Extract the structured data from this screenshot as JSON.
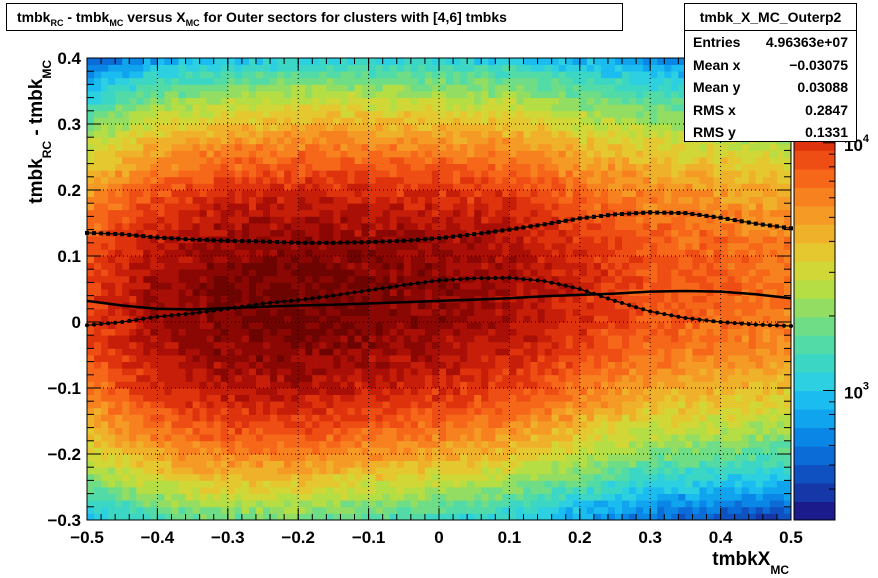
{
  "title": {
    "parts": [
      {
        "t": "tmbk"
      },
      {
        "s": "RC"
      },
      {
        "t": " - tmbk"
      },
      {
        "s": "MC"
      },
      {
        "t": " versus X"
      },
      {
        "s": "MC"
      },
      {
        "t": " for Outer sectors for clusters with [4,6] tmbks"
      }
    ]
  },
  "stats": {
    "name": "tmbk_X_MC_Outerp2",
    "rows": [
      {
        "label": "Entries",
        "value": "4.96363e+07"
      },
      {
        "label": "Mean x",
        "value": "−0.03075"
      },
      {
        "label": "Mean y",
        "value": "0.03088"
      },
      {
        "label": "RMS x",
        "value": "0.2847"
      },
      {
        "label": "RMS y",
        "value": "0.1331"
      }
    ]
  },
  "chart_data": {
    "type": "heatmap",
    "xlabel": "tmbkX",
    "xlabel_sub": "MC",
    "ylabel_main": "tmbk",
    "ylabel_sub1": "RC",
    "ylabel_mid": " - tmbk",
    "ylabel_sub2": "MC",
    "xlim": [
      -0.5,
      0.5
    ],
    "ylim": [
      -0.3,
      0.4
    ],
    "x_ticks": [
      -0.5,
      -0.4,
      -0.3,
      -0.2,
      -0.1,
      0,
      0.1,
      0.2,
      0.3,
      0.4,
      0.5
    ],
    "x_tick_labels": [
      "−0.5",
      "−0.4",
      "−0.3",
      "−0.2",
      "−0.1",
      "0",
      "0.1",
      "0.2",
      "0.3",
      "0.4",
      "0.5"
    ],
    "y_ticks": [
      -0.3,
      -0.2,
      -0.1,
      0,
      0.1,
      0.2,
      0.3,
      0.4
    ],
    "y_tick_labels": [
      "−0.3",
      "−0.2",
      "−0.1",
      "0",
      "0.1",
      "0.2",
      "0.3",
      "0.4"
    ],
    "grid": true,
    "color_scale": "log",
    "color_axis_ticks": [
      {
        "value": 1000,
        "label": "10",
        "exp": "3"
      },
      {
        "value": 10000,
        "label": "10",
        "exp": "4"
      }
    ],
    "z_range": [
      300,
      22000
    ],
    "palette": [
      "#1c1b8c",
      "#1537a8",
      "#1051c2",
      "#0b6cd8",
      "#0a87e6",
      "#10a3ee",
      "#1bbcef",
      "#2dd0e0",
      "#3cd7c4",
      "#52dba6",
      "#6fdd85",
      "#92dd62",
      "#b5dd44",
      "#d1d736",
      "#e5c730",
      "#f0b12a",
      "#f59a25",
      "#f7811f",
      "#f66719",
      "#ee4d13",
      "#de330d",
      "#c61e09",
      "#a90f06",
      "#8a0704",
      "#6e0402"
    ],
    "density_model": {
      "peak": 20000,
      "center_y": [
        {
          "x": -0.5,
          "y": 0.03
        },
        {
          "x": -0.3,
          "y": 0.03
        },
        {
          "x": -0.1,
          "y": 0.04
        },
        {
          "x": 0.1,
          "y": 0.05
        },
        {
          "x": 0.3,
          "y": 0.06
        },
        {
          "x": 0.5,
          "y": 0.06
        }
      ],
      "sigma_y": 0.14,
      "x_weight": [
        {
          "x": -0.5,
          "w": 0.45
        },
        {
          "x": -0.4,
          "w": 0.75
        },
        {
          "x": -0.3,
          "w": 0.95
        },
        {
          "x": -0.2,
          "w": 1.0
        },
        {
          "x": -0.1,
          "w": 0.92
        },
        {
          "x": 0,
          "w": 0.85
        },
        {
          "x": 0.1,
          "w": 0.75
        },
        {
          "x": 0.2,
          "w": 0.55
        },
        {
          "x": 0.3,
          "w": 0.42
        },
        {
          "x": 0.4,
          "w": 0.38
        },
        {
          "x": 0.5,
          "w": 0.33
        }
      ]
    },
    "series": [
      {
        "style": "dotted-upper",
        "x": [
          -0.5,
          -0.45,
          -0.4,
          -0.35,
          -0.3,
          -0.25,
          -0.2,
          -0.15,
          -0.1,
          -0.05,
          0,
          0.05,
          0.1,
          0.15,
          0.2,
          0.25,
          0.3,
          0.35,
          0.4,
          0.45,
          0.5
        ],
        "y": [
          0.135,
          0.133,
          0.128,
          0.125,
          0.123,
          0.122,
          0.12,
          0.12,
          0.121,
          0.123,
          0.127,
          0.133,
          0.14,
          0.148,
          0.157,
          0.163,
          0.166,
          0.165,
          0.158,
          0.149,
          0.142
        ]
      },
      {
        "style": "dotted-lower",
        "x": [
          -0.5,
          -0.45,
          -0.4,
          -0.35,
          -0.3,
          -0.25,
          -0.2,
          -0.15,
          -0.1,
          -0.05,
          0,
          0.05,
          0.1,
          0.15,
          0.2,
          0.25,
          0.3,
          0.35,
          0.4,
          0.45,
          0.5
        ],
        "y": [
          -0.005,
          0.0,
          0.008,
          0.013,
          0.02,
          0.028,
          0.033,
          0.04,
          0.048,
          0.056,
          0.063,
          0.066,
          0.067,
          0.062,
          0.05,
          0.032,
          0.016,
          0.006,
          0.0,
          -0.004,
          -0.006
        ]
      },
      {
        "style": "solid",
        "x": [
          -0.5,
          -0.45,
          -0.4,
          -0.35,
          -0.3,
          -0.25,
          -0.2,
          -0.15,
          -0.1,
          -0.05,
          0,
          0.05,
          0.1,
          0.15,
          0.2,
          0.25,
          0.3,
          0.35,
          0.4,
          0.45,
          0.5
        ],
        "y": [
          0.032,
          0.025,
          0.02,
          0.019,
          0.021,
          0.023,
          0.025,
          0.026,
          0.028,
          0.03,
          0.032,
          0.034,
          0.036,
          0.039,
          0.041,
          0.043,
          0.046,
          0.047,
          0.046,
          0.042,
          0.036
        ]
      }
    ]
  }
}
